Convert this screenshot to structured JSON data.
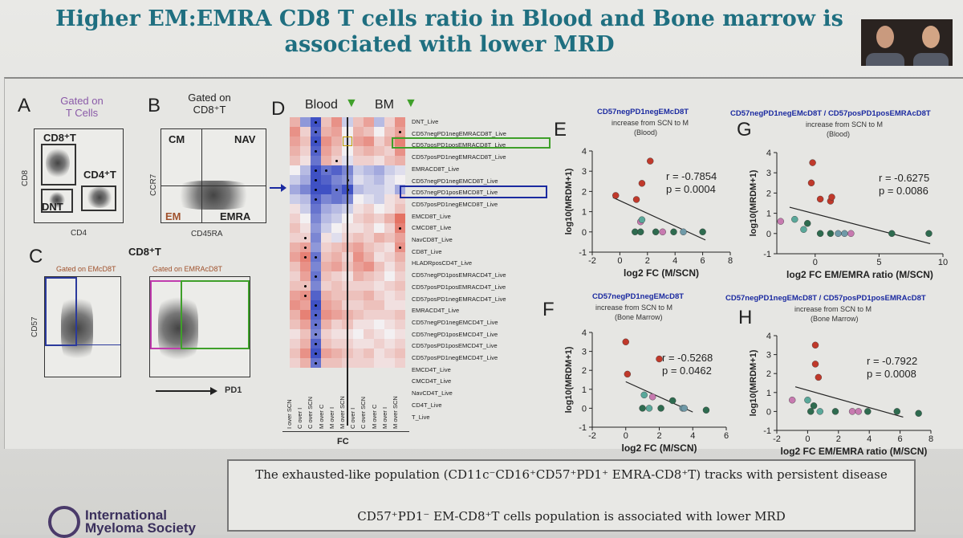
{
  "slide": {
    "title_line1": "Higher EM:EMRA CD8 T cells ratio in Blood and Bone marrow is",
    "title_line2": "associated with lower MRD"
  },
  "panels": {
    "A": {
      "letter": "A",
      "gate_line1": "Gated on",
      "gate_line2": "T Cells",
      "cd8t": "CD8⁺T",
      "cd4t": "CD4⁺T",
      "dnt": "DNT",
      "ylabel": "CD8",
      "xlabel": "CD4"
    },
    "B": {
      "letter": "B",
      "gate_line1": "Gated on",
      "gate_line2": "CD8⁺T",
      "cm": "CM",
      "nav": "NAV",
      "em": "EM",
      "emra": "EMRA",
      "ylabel": "CCR7",
      "xlabel": "CD45RA"
    },
    "C": {
      "letter": "C",
      "title": "CD8⁺T",
      "gate_em": "Gated on EMcD8T",
      "gate_emra": "Gated on EMRAcD8T",
      "ylabel": "CD57",
      "xlabel": "PD1"
    },
    "D": {
      "letter": "D",
      "blood": "Blood",
      "bm": "BM",
      "fc": "FC",
      "col_labels": [
        "I over SCN",
        "C over I",
        "C over SCN",
        "M over C",
        "M over I",
        "M over SCN",
        "C over I",
        "C over SCN",
        "M over C",
        "M over I",
        "M over SCN"
      ],
      "row_labels": [
        "DNT_Live",
        "CD57negPD1negEMRACD8T_Live",
        "CD57posPD1posEMRACD8T_Live",
        "CD57posPD1negEMRACD8T_Live",
        "EMRACD8T_Live",
        "CD57negPD1negEMCD8T_Live",
        "CD57negPD1posEMCD8T_Live",
        "CD57posPD1negEMCD8T_Live",
        "EMCD8T_Live",
        "CMCD8T_Live",
        "NavCD8T_Live",
        "CD8T_Live",
        "HLADRposCD4T_Live",
        "CD57negPD1posEMRACD4T_Live",
        "CD57posPD1posEMRACD4T_Live",
        "CD57posPD1negEMRACD4T_Live",
        "EMRACD4T_Live",
        "CD57negPD1negEMCD4T_Live",
        "CD57negPD1posEMCD4T_Live",
        "CD57posPD1posEMCD4T_Live",
        "CD57posPD1negEMCD4T_Live",
        "EMCD4T_Live",
        "CMCD4T_Live",
        "NavCD4T_Live",
        "CD4T_Live",
        "T_Live"
      ]
    },
    "E": {
      "letter": "E",
      "title": "CD57negPD1negEMcD8T",
      "sub1": "increase from SCN to M",
      "sub2": "(Blood)",
      "r": "r = -0.7854",
      "p": "p = 0.0004",
      "xlabel": "log2 FC (M/SCN)",
      "ylabel": "log10(MRDM+1)"
    },
    "F": {
      "letter": "F",
      "title": "CD57negPD1negEMcD8T",
      "sub1": "increase from SCN to M",
      "sub2": "(Bone Marrow)",
      "r": "r = -0.5268",
      "p": "p = 0.0462",
      "xlabel": "log2 FC (M/SCN)",
      "ylabel": "log10(MRDM+1)"
    },
    "G": {
      "letter": "G",
      "title": "CD57negPD1negEMcD8T / CD57posPD1posEMRAcD8T",
      "sub1": "increase from SCN to M",
      "sub2": "(Blood)",
      "r": "r = -0.6275",
      "p": "p = 0.0086",
      "xlabel": "log2 FC EM/EMRA ratio (M/SCN)",
      "ylabel": "log10(MRDM+1)"
    },
    "H": {
      "letter": "H",
      "title": "CD57negPD1negEMcD8T / CD57posPD1posEMRAcD8T",
      "sub1": "increase from SCN to M",
      "sub2": "(Bone Marrow)",
      "r": "r = -0.7922",
      "p": "p = 0.0008",
      "xlabel": "log2 FC EM/EMRA ratio (M/SCN)",
      "ylabel": "log10(MRDM+1)"
    }
  },
  "chart_data": [
    {
      "id": "E",
      "type": "scatter",
      "xlim": [
        -2,
        8
      ],
      "ylim": [
        -1,
        4
      ],
      "xticks": [
        -2,
        0,
        2,
        4,
        6,
        8
      ],
      "yticks": [
        -1,
        0,
        1,
        2,
        3,
        4
      ],
      "points": [
        {
          "x": 2.2,
          "y": 3.5,
          "c": "#c0392b"
        },
        {
          "x": -0.3,
          "y": 1.8,
          "c": "#c0392b"
        },
        {
          "x": 1.2,
          "y": 1.6,
          "c": "#c0392b"
        },
        {
          "x": 1.6,
          "y": 2.4,
          "c": "#c0392b"
        },
        {
          "x": 1.5,
          "y": 0.5,
          "c": "#c77ab0"
        },
        {
          "x": 1.6,
          "y": 0.6,
          "c": "#5aa89a"
        },
        {
          "x": 1.1,
          "y": 0.0,
          "c": "#2e6b4f"
        },
        {
          "x": 1.5,
          "y": 0.0,
          "c": "#2e6b4f"
        },
        {
          "x": 2.6,
          "y": 0.0,
          "c": "#2e6b4f"
        },
        {
          "x": 3.1,
          "y": 0.0,
          "c": "#c77ab0"
        },
        {
          "x": 3.9,
          "y": 0.0,
          "c": "#2e6b4f"
        },
        {
          "x": 4.6,
          "y": 0.0,
          "c": "#6f9aa8"
        },
        {
          "x": 6.0,
          "y": 0.0,
          "c": "#2e6b4f"
        }
      ],
      "fit": [
        [
          -0.5,
          1.7
        ],
        [
          6.2,
          -0.4
        ]
      ]
    },
    {
      "id": "F",
      "type": "scatter",
      "xlim": [
        -2,
        6
      ],
      "ylim": [
        -1,
        4
      ],
      "xticks": [
        -2,
        0,
        2,
        4,
        6
      ],
      "yticks": [
        -1,
        0,
        1,
        2,
        3,
        4
      ],
      "points": [
        {
          "x": 0.0,
          "y": 3.5,
          "c": "#c0392b"
        },
        {
          "x": 0.1,
          "y": 1.8,
          "c": "#c0392b"
        },
        {
          "x": 2.0,
          "y": 2.6,
          "c": "#c0392b"
        },
        {
          "x": 1.1,
          "y": 0.7,
          "c": "#5aa89a"
        },
        {
          "x": 1.6,
          "y": 0.6,
          "c": "#c77ab0"
        },
        {
          "x": 1.0,
          "y": 0.0,
          "c": "#2e6b4f"
        },
        {
          "x": 1.4,
          "y": 0.0,
          "c": "#5aa89a"
        },
        {
          "x": 2.1,
          "y": 0.0,
          "c": "#2e6b4f"
        },
        {
          "x": 2.8,
          "y": 0.4,
          "c": "#2e6b4f"
        },
        {
          "x": 3.4,
          "y": 0.0,
          "c": "#6f9aa8"
        },
        {
          "x": 3.5,
          "y": 0.0,
          "c": "#6f9aa8"
        },
        {
          "x": 4.8,
          "y": -0.1,
          "c": "#2e6b4f"
        }
      ],
      "fit": [
        [
          0.0,
          1.4
        ],
        [
          4.0,
          -0.2
        ]
      ]
    },
    {
      "id": "G",
      "type": "scatter",
      "xlim": [
        -3,
        10
      ],
      "ylim": [
        -1,
        4
      ],
      "xticks": [
        0,
        5,
        10
      ],
      "yticks": [
        -1,
        0,
        1,
        2,
        3,
        4
      ],
      "points": [
        {
          "x": -0.2,
          "y": 3.5,
          "c": "#c0392b"
        },
        {
          "x": -0.3,
          "y": 2.5,
          "c": "#c0392b"
        },
        {
          "x": 0.4,
          "y": 1.7,
          "c": "#c0392b"
        },
        {
          "x": 1.2,
          "y": 1.6,
          "c": "#c0392b"
        },
        {
          "x": 1.3,
          "y": 1.8,
          "c": "#c0392b"
        },
        {
          "x": -2.7,
          "y": 0.6,
          "c": "#c77ab0"
        },
        {
          "x": -1.6,
          "y": 0.7,
          "c": "#5aa89a"
        },
        {
          "x": -0.9,
          "y": 0.2,
          "c": "#5aa89a"
        },
        {
          "x": -0.6,
          "y": 0.5,
          "c": "#2e6b4f"
        },
        {
          "x": 0.4,
          "y": 0.0,
          "c": "#2e6b4f"
        },
        {
          "x": 1.2,
          "y": 0.0,
          "c": "#2e6b4f"
        },
        {
          "x": 1.8,
          "y": 0.0,
          "c": "#6f9aa8"
        },
        {
          "x": 2.3,
          "y": 0.0,
          "c": "#6f9aa8"
        },
        {
          "x": 2.8,
          "y": 0.0,
          "c": "#c77ab0"
        },
        {
          "x": 6.0,
          "y": 0.0,
          "c": "#2e6b4f"
        },
        {
          "x": 8.9,
          "y": 0.0,
          "c": "#2e6b4f"
        }
      ],
      "fit": [
        [
          -2.0,
          1.3
        ],
        [
          9.0,
          -0.5
        ]
      ]
    },
    {
      "id": "H",
      "type": "scatter",
      "xlim": [
        -2,
        8
      ],
      "ylim": [
        -1,
        4
      ],
      "xticks": [
        -2,
        0,
        2,
        4,
        6,
        8
      ],
      "yticks": [
        -1,
        0,
        1,
        2,
        3,
        4
      ],
      "points": [
        {
          "x": 0.5,
          "y": 3.5,
          "c": "#c0392b"
        },
        {
          "x": 0.5,
          "y": 2.5,
          "c": "#c0392b"
        },
        {
          "x": 0.7,
          "y": 1.8,
          "c": "#c0392b"
        },
        {
          "x": -1.0,
          "y": 0.6,
          "c": "#c77ab0"
        },
        {
          "x": 0.0,
          "y": 0.6,
          "c": "#5aa89a"
        },
        {
          "x": 0.4,
          "y": 0.3,
          "c": "#2e6b4f"
        },
        {
          "x": 0.2,
          "y": 0.0,
          "c": "#2e6b4f"
        },
        {
          "x": 0.8,
          "y": 0.0,
          "c": "#5aa89a"
        },
        {
          "x": 1.8,
          "y": 0.0,
          "c": "#2e6b4f"
        },
        {
          "x": 2.9,
          "y": 0.0,
          "c": "#c77ab0"
        },
        {
          "x": 3.3,
          "y": 0.0,
          "c": "#c77ab0"
        },
        {
          "x": 3.9,
          "y": 0.0,
          "c": "#2e6b4f"
        },
        {
          "x": 5.8,
          "y": 0.0,
          "c": "#2e6b4f"
        },
        {
          "x": 7.2,
          "y": -0.1,
          "c": "#2e6b4f"
        }
      ],
      "fit": [
        [
          -0.8,
          1.3
        ],
        [
          6.2,
          -0.3
        ]
      ]
    }
  ],
  "heatmap": {
    "colors": {
      "red": "#e0523f",
      "blue": "#2b3fbf",
      "white": "#f3f0f2"
    },
    "values": [
      [
        0.4,
        -0.5,
        -0.9,
        0.3,
        0.6,
        -0.2,
        0.3,
        0.5,
        -0.3,
        0.2,
        0.6
      ],
      [
        0.6,
        0.2,
        -0.8,
        0.4,
        0.5,
        0.0,
        0.4,
        0.3,
        0.0,
        0.3,
        0.5
      ],
      [
        0.5,
        0.3,
        -0.9,
        0.6,
        0.4,
        -0.1,
        0.5,
        0.6,
        0.2,
        0.4,
        0.7
      ],
      [
        0.4,
        0.2,
        -0.8,
        0.5,
        0.3,
        0.0,
        0.3,
        0.4,
        0.3,
        0.2,
        0.6
      ],
      [
        0.3,
        0.1,
        -0.7,
        0.4,
        0.2,
        -0.1,
        0.2,
        0.2,
        0.1,
        0.3,
        0.4
      ],
      [
        0.0,
        -0.3,
        -0.9,
        -0.7,
        -0.8,
        -0.6,
        -0.2,
        -0.3,
        -0.4,
        -0.2,
        -0.1
      ],
      [
        -0.2,
        -0.4,
        -0.9,
        -0.8,
        -0.6,
        -0.5,
        -0.1,
        -0.2,
        -0.3,
        -0.1,
        0.0
      ],
      [
        -0.4,
        -0.6,
        -0.9,
        -0.9,
        -0.7,
        -0.9,
        -0.3,
        -0.2,
        -0.2,
        -0.1,
        -0.4
      ],
      [
        -0.2,
        -0.3,
        -0.8,
        -0.6,
        -0.7,
        -0.6,
        0.0,
        -0.1,
        -0.2,
        0.1,
        0.2
      ],
      [
        0.1,
        -0.2,
        -0.7,
        -0.4,
        -0.3,
        -0.2,
        0.1,
        0.2,
        0.0,
        0.1,
        0.3
      ],
      [
        0.2,
        0.0,
        -0.6,
        -0.3,
        -0.2,
        0.0,
        0.2,
        0.3,
        0.2,
        0.4,
        0.8
      ],
      [
        0.3,
        0.1,
        -0.5,
        -0.2,
        0.0,
        0.1,
        0.1,
        0.2,
        0.0,
        0.2,
        0.7
      ],
      [
        0.2,
        0.2,
        -0.6,
        0.1,
        -0.1,
        0.2,
        0.3,
        0.2,
        0.4,
        0.3,
        0.5
      ],
      [
        0.4,
        0.5,
        -0.5,
        0.2,
        0.3,
        0.4,
        0.5,
        0.3,
        0.2,
        0.1,
        0.6
      ],
      [
        0.5,
        0.7,
        -0.7,
        0.3,
        0.4,
        0.2,
        0.6,
        0.4,
        0.1,
        0.2,
        0.4
      ],
      [
        0.3,
        0.6,
        -0.6,
        0.4,
        0.5,
        0.3,
        0.5,
        0.6,
        0.3,
        0.1,
        0.3
      ],
      [
        0.2,
        0.5,
        -0.7,
        0.3,
        0.2,
        0.1,
        0.4,
        0.3,
        0.2,
        0.0,
        0.2
      ],
      [
        0.3,
        0.3,
        -0.6,
        0.2,
        0.3,
        0.2,
        0.2,
        0.2,
        0.1,
        0.2,
        0.3
      ],
      [
        0.5,
        0.6,
        -0.8,
        0.4,
        0.3,
        0.3,
        0.3,
        0.4,
        0.2,
        0.1,
        0.2
      ],
      [
        0.6,
        0.5,
        -0.9,
        0.5,
        0.4,
        0.2,
        0.2,
        0.3,
        0.3,
        0.1,
        0.1
      ],
      [
        0.4,
        0.7,
        -0.8,
        0.6,
        0.5,
        0.4,
        0.3,
        0.2,
        0.2,
        0.2,
        0.3
      ],
      [
        0.3,
        0.5,
        -0.7,
        0.4,
        0.2,
        0.3,
        0.1,
        0.1,
        0.0,
        0.1,
        0.2
      ],
      [
        0.1,
        0.3,
        -0.6,
        0.2,
        0.1,
        0.1,
        0.0,
        0.2,
        0.1,
        0.0,
        0.1
      ],
      [
        0.2,
        0.4,
        -0.8,
        0.3,
        0.2,
        0.2,
        0.1,
        0.1,
        0.2,
        0.1,
        0.2
      ],
      [
        0.3,
        0.6,
        -0.9,
        0.5,
        0.4,
        0.3,
        0.2,
        0.3,
        0.1,
        0.2,
        0.3
      ],
      [
        0.2,
        0.4,
        -0.7,
        0.3,
        0.3,
        0.2,
        0.2,
        0.2,
        0.1,
        0.1,
        0.2
      ]
    ],
    "dots": [
      [
        0,
        2
      ],
      [
        1,
        2
      ],
      [
        1,
        10
      ],
      [
        2,
        2
      ],
      [
        3,
        2
      ],
      [
        4,
        4
      ],
      [
        5,
        2
      ],
      [
        5,
        3
      ],
      [
        6,
        2
      ],
      [
        6,
        5
      ],
      [
        7,
        2
      ],
      [
        7,
        4
      ],
      [
        7,
        5
      ],
      [
        8,
        2
      ],
      [
        11,
        10
      ],
      [
        12,
        1
      ],
      [
        13,
        1
      ],
      [
        13,
        10
      ],
      [
        14,
        1
      ],
      [
        14,
        2
      ],
      [
        16,
        2
      ],
      [
        17,
        1
      ],
      [
        18,
        1
      ],
      [
        19,
        2
      ],
      [
        20,
        2
      ],
      [
        21,
        2
      ],
      [
        22,
        2
      ],
      [
        23,
        2
      ],
      [
        24,
        2
      ],
      [
        25,
        2
      ]
    ]
  },
  "summary": {
    "line1": "The exhausted-like population (CD11c⁻CD16⁺CD57⁺PD1⁺ EMRA-CD8⁺T) tracks with persistent disease",
    "line2": "CD57⁺PD1⁻ EM-CD8⁺T cells population is associated with lower MRD"
  },
  "logo": {
    "line1": "International",
    "line2": "Myeloma Society"
  }
}
